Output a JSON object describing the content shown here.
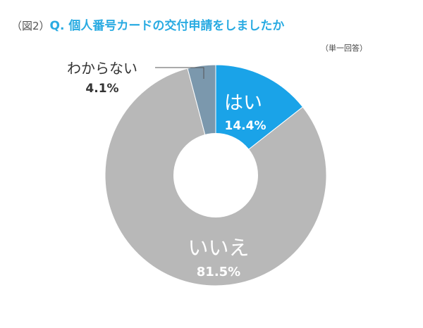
{
  "header": {
    "fig_label": "（図2）",
    "question": "Q. 個人番号カードの交付申請をしましたか",
    "note": "（単一回答）"
  },
  "colors": {
    "accent": "#29abe2",
    "yes": "#1aa3e8",
    "no": "#b8b8b8",
    "unknown": "#7b98ad",
    "label_dark": "#333333",
    "label_light": "#ffffff"
  },
  "chart_data": {
    "type": "pie",
    "donut": true,
    "title": "Q. 個人番号カードの交付申請をしましたか",
    "categories": [
      "はい",
      "いいえ",
      "わからない"
    ],
    "values": [
      14.4,
      81.5,
      4.1
    ],
    "value_labels": [
      "14.4%",
      "81.5%",
      "4.1%"
    ],
    "colors": [
      "#1aa3e8",
      "#b8b8b8",
      "#7b98ad"
    ],
    "start": "top, clockwise",
    "legend": "none"
  }
}
